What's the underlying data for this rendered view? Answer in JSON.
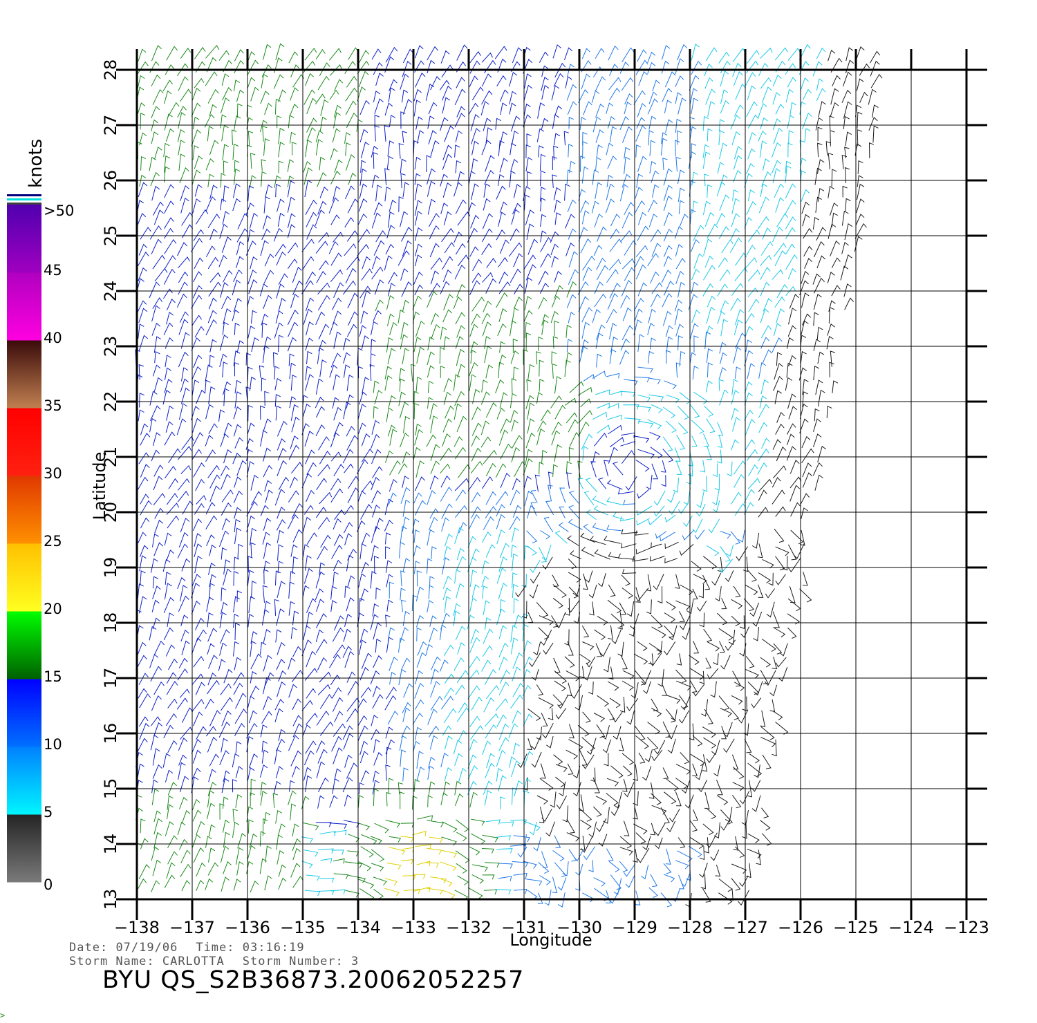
{
  "colorbar": {
    "unit_label": "knots",
    "tick_labels": [
      "0",
      "5",
      "10",
      "15",
      "20",
      "25",
      "30",
      "35",
      "40",
      "45",
      ">50"
    ],
    "bands": [
      {
        "from": 0,
        "to": 5,
        "colors": [
          "#7a7a7a",
          "#242424"
        ]
      },
      {
        "from": 5,
        "to": 10,
        "colors": [
          "#00f6ff",
          "#0080ff"
        ]
      },
      {
        "from": 10,
        "to": 15,
        "colors": [
          "#0070ff",
          "#0000ff"
        ]
      },
      {
        "from": 15,
        "to": 20,
        "colors": [
          "#006000",
          "#00ff00"
        ]
      },
      {
        "from": 20,
        "to": 25,
        "colors": [
          "#ffff20",
          "#ffc000"
        ]
      },
      {
        "from": 25,
        "to": 30,
        "colors": [
          "#ff9000",
          "#e03800"
        ]
      },
      {
        "from": 30,
        "to": 35,
        "colors": [
          "#ff2010",
          "#ff0000"
        ]
      },
      {
        "from": 35,
        "to": 40,
        "colors": [
          "#c08050",
          "#3a0a0a"
        ]
      },
      {
        "from": 40,
        "to": 45,
        "colors": [
          "#ff00e0",
          "#b000c0"
        ]
      },
      {
        "from": 45,
        "to": 50,
        "colors": [
          "#a000c0",
          "#5000b0"
        ]
      }
    ],
    "cap_stripes": [
      "#000080",
      "#ffffff",
      "#00e0e0",
      "#ffffff",
      "#404040"
    ]
  },
  "map": {
    "lon_range": [
      -138,
      -123
    ],
    "lat_range": [
      13,
      28
    ],
    "lon_ticks": [
      -138,
      -137,
      -136,
      -135,
      -134,
      -133,
      -132,
      -131,
      -130,
      -129,
      -128,
      -127,
      -126,
      -125,
      -124,
      -123
    ],
    "lat_ticks": [
      13,
      14,
      15,
      16,
      17,
      18,
      19,
      20,
      21,
      22,
      23,
      24,
      25,
      26,
      27,
      28
    ],
    "lon_tick_labels": [
      "−138",
      "−137",
      "−136",
      "−135",
      "−134",
      "−133",
      "−132",
      "−131",
      "−130",
      "−129",
      "−128",
      "−127",
      "−126",
      "−125",
      "−124",
      "−123"
    ],
    "lat_tick_labels": [
      "13",
      "14",
      "15",
      "16",
      "17",
      "18",
      "19",
      "20",
      "21",
      "22",
      "23",
      "24",
      "25",
      "26",
      "27",
      "28"
    ],
    "xlabel": "Longitude",
    "ylabel": "Latitude",
    "grid": true
  },
  "info": {
    "date_label": "Date:",
    "date_value": "07/19/06",
    "time_label": "Time:",
    "time_value": "03:16:19",
    "storm_name_label": "Storm Name:",
    "storm_name_value": "CARLOTTA",
    "storm_number_label": "Storm Number:",
    "storm_number_value": "3",
    "product_id": "BYU QS_S2B36873.20062052257",
    "corner_mark": ">"
  }
}
